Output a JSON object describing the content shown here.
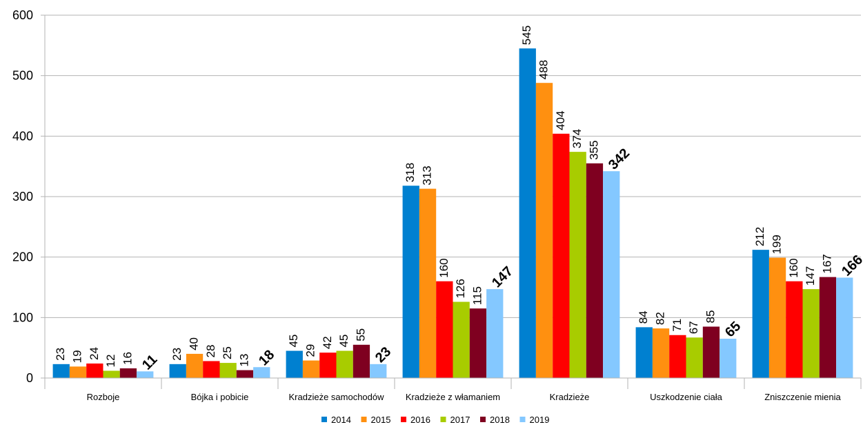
{
  "chart_data": {
    "type": "bar",
    "categories": [
      "Rozboje",
      "Bójka i pobicie",
      "Kradzieże samochodów",
      "Kradzieże z włamaniem",
      "Kradzieże",
      "Uszkodzenie ciała",
      "Zniszczenie mienia"
    ],
    "series": [
      {
        "name": "2014",
        "color": "#0080d0",
        "values": [
          23,
          23,
          45,
          318,
          545,
          84,
          212
        ]
      },
      {
        "name": "2015",
        "color": "#ff9010",
        "values": [
          19,
          40,
          29,
          313,
          488,
          82,
          199
        ]
      },
      {
        "name": "2016",
        "color": "#ff0000",
        "values": [
          24,
          28,
          42,
          160,
          404,
          71,
          160
        ]
      },
      {
        "name": "2017",
        "color": "#a8cc00",
        "values": [
          12,
          25,
          45,
          126,
          374,
          67,
          147
        ]
      },
      {
        "name": "2018",
        "color": "#7f0020",
        "values": [
          16,
          13,
          55,
          115,
          355,
          85,
          167
        ]
      },
      {
        "name": "2019",
        "color": "#84c8ff",
        "values": [
          11,
          18,
          23,
          147,
          342,
          65,
          166
        ]
      }
    ],
    "yticks": [
      "0",
      "100",
      "200",
      "300",
      "400",
      "500",
      "600"
    ],
    "ylim": [
      0,
      600
    ],
    "grid": true,
    "legend_position": "bottom",
    "bold_series_labels": "2019"
  }
}
